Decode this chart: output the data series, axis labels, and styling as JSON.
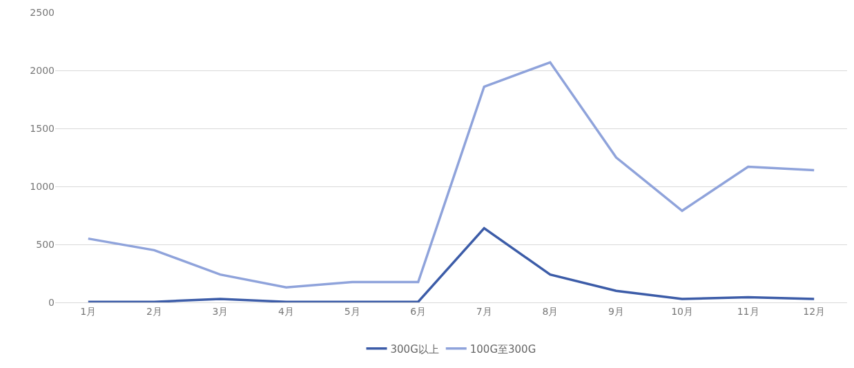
{
  "chart_data": {
    "type": "line",
    "categories": [
      "1月",
      "2月",
      "3月",
      "4月",
      "5月",
      "6月",
      "7月",
      "8月",
      "9月",
      "10月",
      "11月",
      "12月"
    ],
    "series": [
      {
        "name": "300G以上",
        "color": "#3c5ca8",
        "values": [
          5,
          5,
          30,
          5,
          5,
          5,
          640,
          240,
          100,
          30,
          45,
          30
        ]
      },
      {
        "name": "100G至300G",
        "color": "#8fa3db",
        "values": [
          550,
          450,
          240,
          130,
          175,
          175,
          1860,
          2070,
          1250,
          790,
          1170,
          1140
        ]
      }
    ],
    "ylim": [
      0,
      2500
    ],
    "yticks": [
      0,
      500,
      1000,
      1500,
      2000,
      2500
    ],
    "grid": "y",
    "legend": "bottom",
    "marker": "none",
    "line_style": "solid"
  }
}
